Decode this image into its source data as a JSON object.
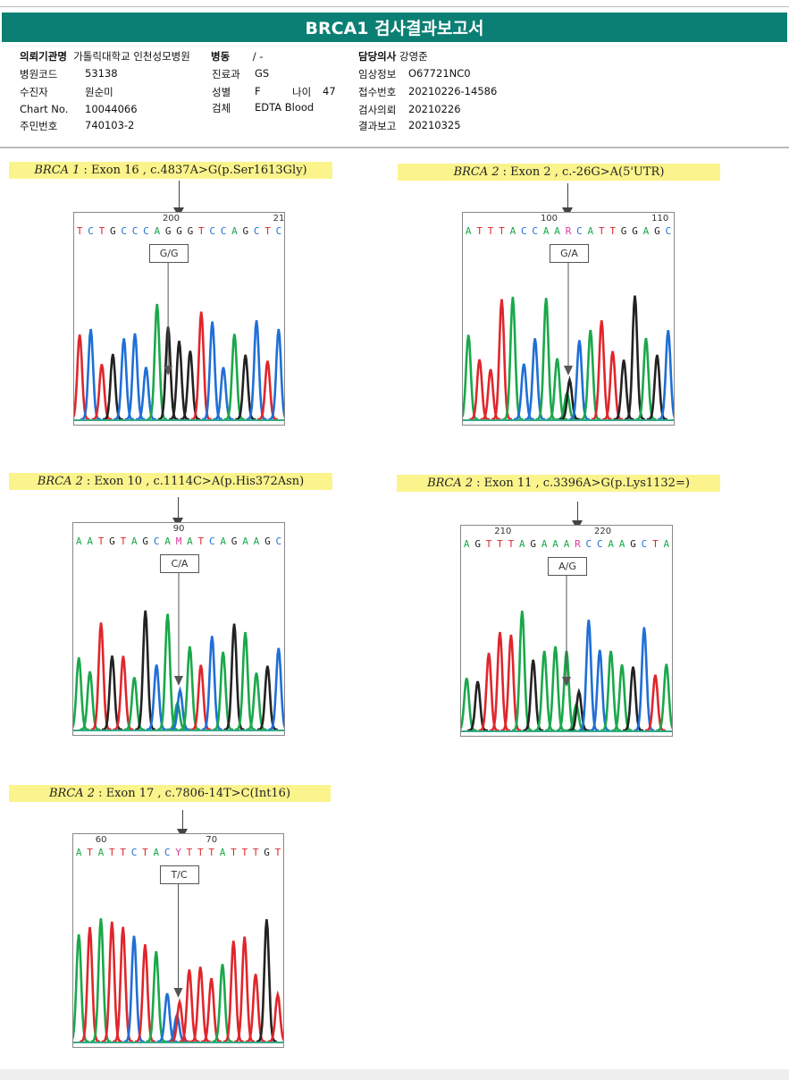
{
  "header": {
    "title": "BRCA1 검사결과보고서"
  },
  "info": {
    "institution": {
      "label": "의뢰기관명",
      "value": "가톨릭대학교 인천성모병원"
    },
    "ward": {
      "label": "병동",
      "value": "/ -"
    },
    "doctor": {
      "label": "담당의사",
      "value": "강영준"
    },
    "hospital_code": {
      "label": "병원코드",
      "value": "53138"
    },
    "department": {
      "label": "진료과",
      "value": "GS"
    },
    "clinical_info": {
      "label": "임상정보",
      "value": "O67721NC0"
    },
    "patient": {
      "label": "수진자",
      "value": "원순미"
    },
    "sex": {
      "label": "성별",
      "value": "F"
    },
    "age": {
      "label": "나이",
      "value": "47"
    },
    "receipt_no": {
      "label": "접수번호",
      "value": "20210226-14586"
    },
    "chart_no": {
      "label": "Chart No.",
      "value": "10044066"
    },
    "specimen": {
      "label": "검체",
      "value": "EDTA Blood"
    },
    "request_date": {
      "label": "검사의뢰",
      "value": "20210226"
    },
    "resident_no": {
      "label": "주민번호",
      "value": "740103-2"
    },
    "report_date": {
      "label": "결과보고",
      "value": "20210325"
    }
  },
  "colors": {
    "accent": "#0b7f74",
    "A": "#1aa84a",
    "C": "#1f6fd6",
    "G": "#222222",
    "T": "#e0262b",
    "ambiguous": "#d63aa0",
    "label_bg": "#fbf48c"
  },
  "variants": [
    {
      "gene": "BRCA 1",
      "desc": ": Exon 16 , c.4837A>G(p.Ser1613Gly)",
      "sequence": "TCTGCCCAGGGTCCAGCTC",
      "positions": [
        "200",
        "21"
      ],
      "genotype": "G/G"
    },
    {
      "gene": "BRCA 2",
      "desc": ": Exon 2 , c.-26G>A(5'UTR)",
      "sequence": "ATTTACCAARCATTGGAGC",
      "positions": [
        "100",
        "110"
      ],
      "genotype": "G/A"
    },
    {
      "gene": "BRCA 2",
      "desc": ": Exon 10 , c.1114C>A(p.His372Asn)",
      "sequence": "AATGTAGCAMATCAGAAGC",
      "positions": [
        "90"
      ],
      "genotype": "C/A"
    },
    {
      "gene": "BRCA 2",
      "desc": ": Exon 11 , c.3396A>G(p.Lys1132=)",
      "sequence": "AGTTTAGAAARCCAAGCTA",
      "positions": [
        "210",
        "220"
      ],
      "genotype": "A/G"
    },
    {
      "gene": "BRCA 2",
      "desc": ": Exon 17 , c.7806-14T>C(Int16)",
      "sequence": "ATATTCTACYTTTATTTGT",
      "positions": [
        "60",
        "70"
      ],
      "genotype": "T/C"
    }
  ]
}
